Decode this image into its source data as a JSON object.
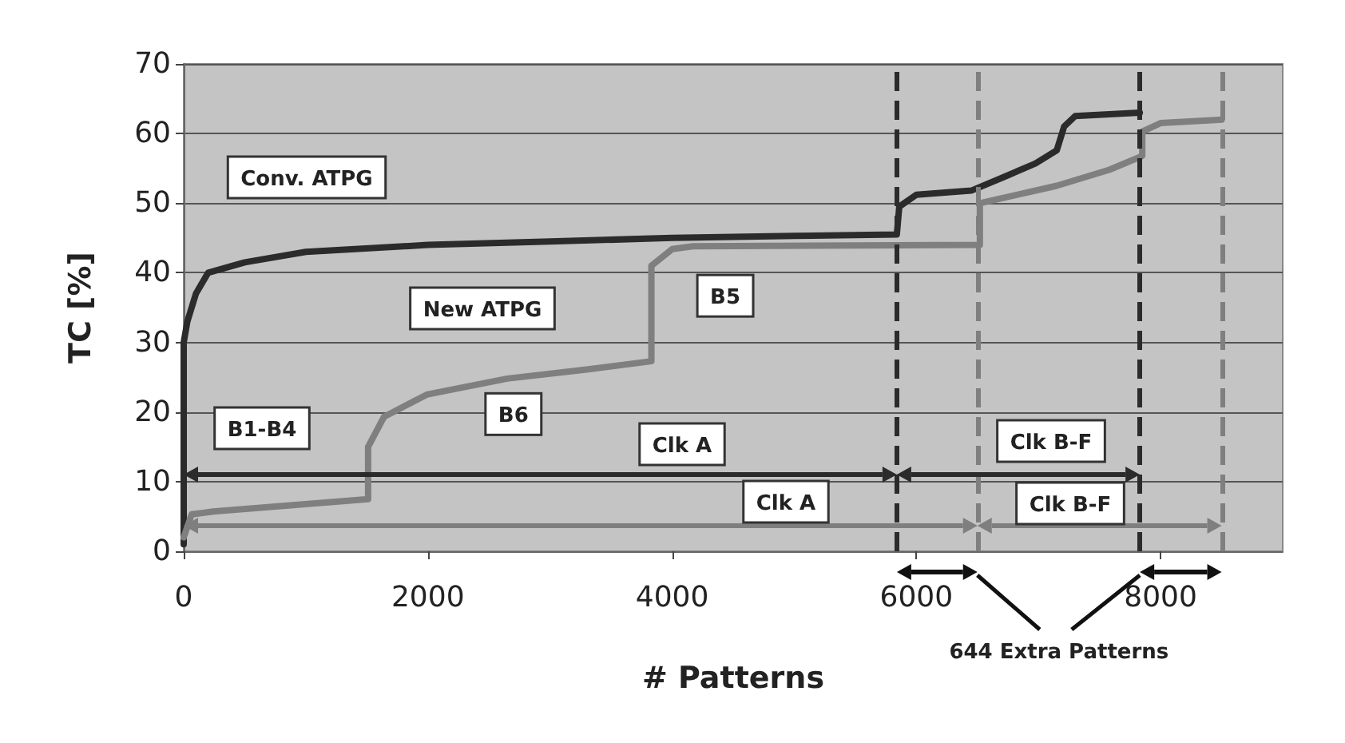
{
  "chart_data": {
    "type": "line",
    "xlabel": "# Patterns",
    "ylabel": "TC [%]",
    "series": [
      {
        "color": "#2b2b2b",
        "x": [
          0,
          0,
          0,
          30,
          100,
          200,
          500,
          1000,
          2000,
          3000,
          4000,
          5000,
          5840,
          5860,
          6000,
          6450,
          6710,
          6975,
          7150,
          7210,
          7300,
          7830
        ],
        "values": [
          1,
          12,
          30,
          33,
          37,
          40,
          41.5,
          43,
          44,
          44.5,
          45,
          45.3,
          45.5,
          49.5,
          51.2,
          51.8,
          53.7,
          55.7,
          57.6,
          61,
          62.5,
          63
        ]
      },
      {
        "color": "#7f7f7f",
        "x": [
          0,
          65,
          240,
          1510,
          1510,
          1640,
          1990,
          2650,
          3300,
          3830,
          3830,
          4000,
          4170,
          6520,
          6520,
          6800,
          7150,
          7580,
          7800,
          7850,
          7850,
          8000,
          8500
        ],
        "values": [
          2,
          5.3,
          5.7,
          7.5,
          15,
          19.3,
          22.5,
          24.8,
          26.1,
          27.3,
          41,
          43.4,
          43.8,
          44,
          50,
          51.1,
          52.5,
          54.8,
          56.4,
          56.8,
          60.3,
          61.5,
          62
        ]
      }
    ],
    "xlim": [
      0,
      9000
    ],
    "xticks": [
      0,
      2000,
      4000,
      6000,
      8000
    ],
    "ylim": [
      0,
      70
    ],
    "yticks": [
      0,
      10,
      20,
      30,
      40,
      50,
      60,
      70
    ],
    "grid": "y",
    "marker": "none",
    "line_style": "solid",
    "ref_lines": [
      {
        "axis": "x",
        "value": 5840,
        "color": "#2b2b2b",
        "line_style": "dashed"
      },
      {
        "axis": "x",
        "value": 6500,
        "color": "#7f7f7f",
        "line_style": "dashed"
      },
      {
        "axis": "x",
        "value": 7830,
        "color": "#2b2b2b",
        "line_style": "dashed"
      },
      {
        "axis": "x",
        "value": 8500,
        "color": "#7f7f7f",
        "line_style": "dashed"
      }
    ],
    "annotations": [
      "Conv. ATPG",
      "New ATPG",
      {
        "text": "B5",
        "x": 4435,
        "y": 36.7
      },
      "B1-B4",
      {
        "text": "B6",
        "x": 2700,
        "y": 19.7
      },
      "Clk A",
      "Clk B-F",
      "Clk A",
      "Clk B-F",
      "644 Extra Patterns"
    ]
  }
}
